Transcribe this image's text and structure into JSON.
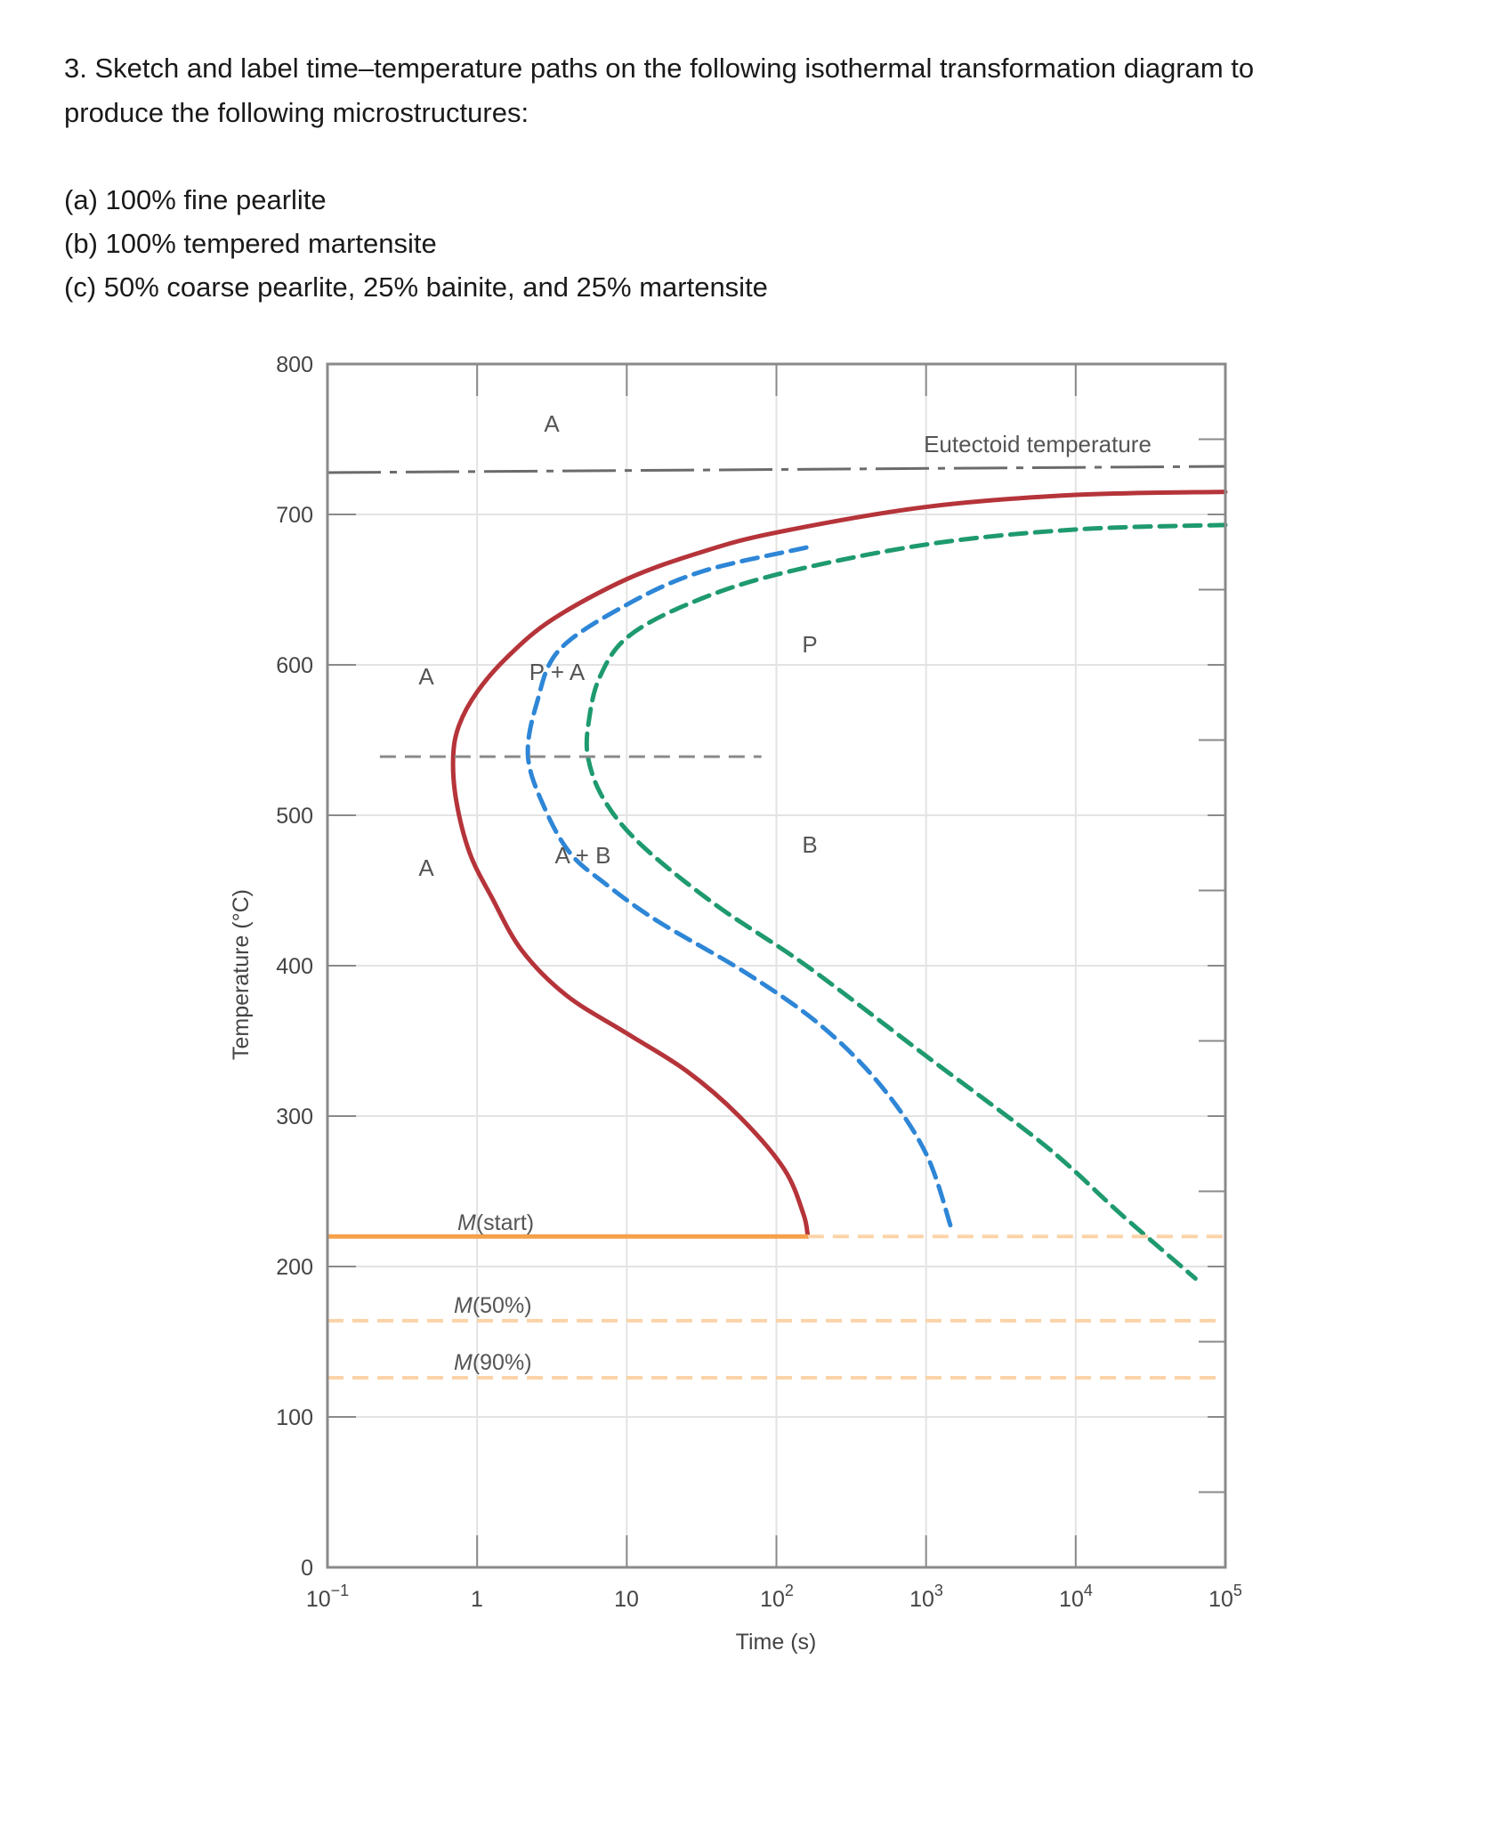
{
  "question": {
    "number": "3.",
    "text_line1": "3.  Sketch and label time–temperature paths on the following isothermal transformation diagram to",
    "text_line2": "produce the following microstructures:",
    "items": [
      "(a) 100% fine pearlite",
      "(b) 100% tempered martensite",
      "(c) 50% coarse pearlite, 25% bainite, and 25% martensite"
    ]
  },
  "colors": {
    "start_curve": "#b5343a",
    "fifty_curve": "#2e86d6",
    "finish_curve": "#1e9a6e",
    "martensite": "#f5a04a",
    "martensite_light": "#fbd3a8",
    "eutectoid": "#6b6b6b",
    "grid": "#e3e3e3",
    "axis": "#8a8a8a"
  },
  "chart_data": {
    "type": "line",
    "title": "",
    "xlabel": "Time (s)",
    "ylabel": "Temperature (°C)",
    "xscale": "log",
    "xlim": [
      0.1,
      100000
    ],
    "ylim": [
      0,
      800
    ],
    "grid": true,
    "x_tick_labels": [
      "10⁻¹",
      "1",
      "10",
      "10²",
      "10³",
      "10⁴",
      "10⁵"
    ],
    "y_tick_labels": [
      "0",
      "100",
      "200",
      "300",
      "400",
      "500",
      "600",
      "700",
      "800"
    ],
    "series": [
      {
        "name": "Transformation start (0%)",
        "style": "solid",
        "color": "#b5343a",
        "points_logt_T": [
          [
            5,
            715
          ],
          [
            4,
            713
          ],
          [
            3,
            705
          ],
          [
            2,
            688
          ],
          [
            1.5,
            675
          ],
          [
            1,
            657
          ],
          [
            0.5,
            630
          ],
          [
            0.2,
            605
          ],
          [
            0,
            582
          ],
          [
            -0.12,
            560
          ],
          [
            -0.16,
            539
          ],
          [
            -0.14,
            510
          ],
          [
            -0.05,
            475
          ],
          [
            0.1,
            445
          ],
          [
            0.3,
            410
          ],
          [
            0.6,
            380
          ],
          [
            1.0,
            355
          ],
          [
            1.4,
            330
          ],
          [
            1.75,
            300
          ],
          [
            2.05,
            265
          ],
          [
            2.18,
            235
          ],
          [
            2.21,
            220
          ]
        ]
      },
      {
        "name": "50% transformation",
        "style": "dashed",
        "color": "#2e86d6",
        "points_logt_T": [
          [
            2.2,
            678
          ],
          [
            1.5,
            662
          ],
          [
            1,
            640
          ],
          [
            0.55,
            610
          ],
          [
            0.4,
            575
          ],
          [
            0.34,
            539
          ],
          [
            0.45,
            505
          ],
          [
            0.62,
            475
          ],
          [
            0.85,
            455
          ],
          [
            1.2,
            430
          ],
          [
            1.8,
            395
          ],
          [
            2.3,
            360
          ],
          [
            2.7,
            320
          ],
          [
            3.0,
            275
          ],
          [
            3.17,
            225
          ]
        ]
      },
      {
        "name": "Transformation finish (100%)",
        "style": "dashed",
        "color": "#1e9a6e",
        "points_logt_T": [
          [
            5,
            693
          ],
          [
            4,
            690
          ],
          [
            3,
            680
          ],
          [
            2,
            660
          ],
          [
            1.4,
            640
          ],
          [
            1,
            618
          ],
          [
            0.82,
            592
          ],
          [
            0.75,
            565
          ],
          [
            0.74,
            539
          ],
          [
            0.85,
            510
          ],
          [
            1.1,
            480
          ],
          [
            1.6,
            440
          ],
          [
            2.2,
            400
          ],
          [
            3,
            340
          ],
          [
            3.8,
            280
          ],
          [
            4.3,
            235
          ],
          [
            4.8,
            192
          ]
        ]
      },
      {
        "name": "Eutectoid temperature",
        "style": "dash-dot",
        "color": "#6b6b6b",
        "T": 727
      },
      {
        "name": "M(start)",
        "style": "solid-then-dashed",
        "color": "#f5a04a",
        "T": 220,
        "solid_until_logt": 2.21
      },
      {
        "name": "M(50%)",
        "style": "dashed",
        "color": "#fbd3a8",
        "T": 164
      },
      {
        "name": "M(90%)",
        "style": "dashed",
        "color": "#fbd3a8",
        "T": 126
      },
      {
        "name": "Nose reference",
        "style": "dashed",
        "color": "#8a8a8a",
        "T": 539,
        "logt_range": [
          -0.65,
          1.9
        ]
      }
    ],
    "annotations": [
      {
        "text": "A",
        "logt": 0.4,
        "T": 760
      },
      {
        "text": "Eutectoid temperature",
        "logt": 3.95,
        "T": 743
      },
      {
        "text": "A",
        "logt": -0.6,
        "T": 595
      },
      {
        "text": "P + A",
        "logt": 0.42,
        "T": 595
      },
      {
        "text": "P",
        "logt": 2.2,
        "T": 615
      },
      {
        "text": "A",
        "logt": -0.6,
        "T": 465
      },
      {
        "text": "A + B",
        "logt": 0.7,
        "T": 475
      },
      {
        "text": "B",
        "logt": 2.2,
        "T": 480
      },
      {
        "text": "M(start)",
        "logt": 0.17,
        "T": 228
      },
      {
        "text": "M(50%)",
        "logt": 0.17,
        "T": 172
      },
      {
        "text": "M(90%)",
        "logt": 0.17,
        "T": 134
      }
    ]
  },
  "labels": {
    "y_title": "Temperature (°C)",
    "x_title": "Time (s)",
    "eutectoid": "Eutectoid temperature",
    "region_A_top": "A",
    "region_A_mid": "A",
    "region_PA": "P + A",
    "region_P": "P",
    "region_A_low": "A",
    "region_AB": "A + B",
    "region_B": "B",
    "m_start_M": "M",
    "m_start_rest": "(start)",
    "m50_M": "M",
    "m50_rest": "(50%)",
    "m90_M": "M",
    "m90_rest": "(90%)",
    "y_ticks": [
      "0",
      "100",
      "200",
      "300",
      "400",
      "500",
      "600",
      "700",
      "800"
    ],
    "x_ticks": [
      {
        "base": "10",
        "exp": "−1"
      },
      {
        "base": "1",
        "exp": ""
      },
      {
        "base": "10",
        "exp": ""
      },
      {
        "base": "10",
        "exp": "2"
      },
      {
        "base": "10",
        "exp": "3"
      },
      {
        "base": "10",
        "exp": "4"
      },
      {
        "base": "10",
        "exp": "5"
      }
    ]
  }
}
